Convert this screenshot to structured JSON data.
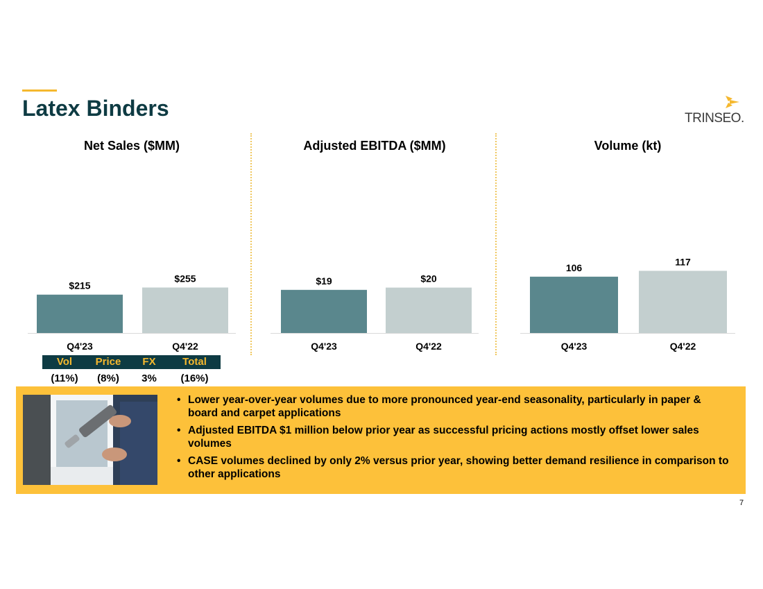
{
  "slide": {
    "title": "Latex Binders",
    "logo_text": "TRINSEO.",
    "page_number": "7"
  },
  "colors": {
    "title": "#0e3b43",
    "accent": "#f5b82e",
    "bar_current": "#5a878d",
    "bar_prior": "#c3cfcf",
    "banner": "#fdc13a"
  },
  "chart_data": [
    {
      "type": "bar",
      "title": "Net Sales ($MM)",
      "categories": [
        "Q4'23",
        "Q4'22"
      ],
      "values": [
        215,
        255
      ],
      "labels": [
        "$215",
        "$255"
      ],
      "ylim": [
        0,
        700
      ],
      "grid": false
    },
    {
      "type": "bar",
      "title": "Adjusted EBITDA ($MM)",
      "categories": [
        "Q4'23",
        "Q4'22"
      ],
      "values": [
        19,
        20
      ],
      "labels": [
        "$19",
        "$20"
      ],
      "ylim": [
        0,
        55
      ],
      "grid": false
    },
    {
      "type": "bar",
      "title": "Volume (kt)",
      "categories": [
        "Q4'23",
        "Q4'22"
      ],
      "values": [
        106,
        117
      ],
      "labels": [
        "106",
        "117"
      ],
      "ylim": [
        0,
        235
      ],
      "grid": false
    }
  ],
  "bridge": {
    "headers": [
      "Vol",
      "Price",
      "FX",
      "Total"
    ],
    "values": [
      "(11%)",
      "(8%)",
      "3%",
      "(16%)"
    ]
  },
  "bullets": [
    "Lower year-over-year volumes due to more pronounced year-end seasonality, particularly in paper & board and carpet applications",
    "Adjusted EBITDA $1 million below prior year as successful pricing actions mostly offset lower sales volumes",
    "CASE volumes declined by only 2% versus prior year, showing better demand resilience in comparison to other applications"
  ]
}
